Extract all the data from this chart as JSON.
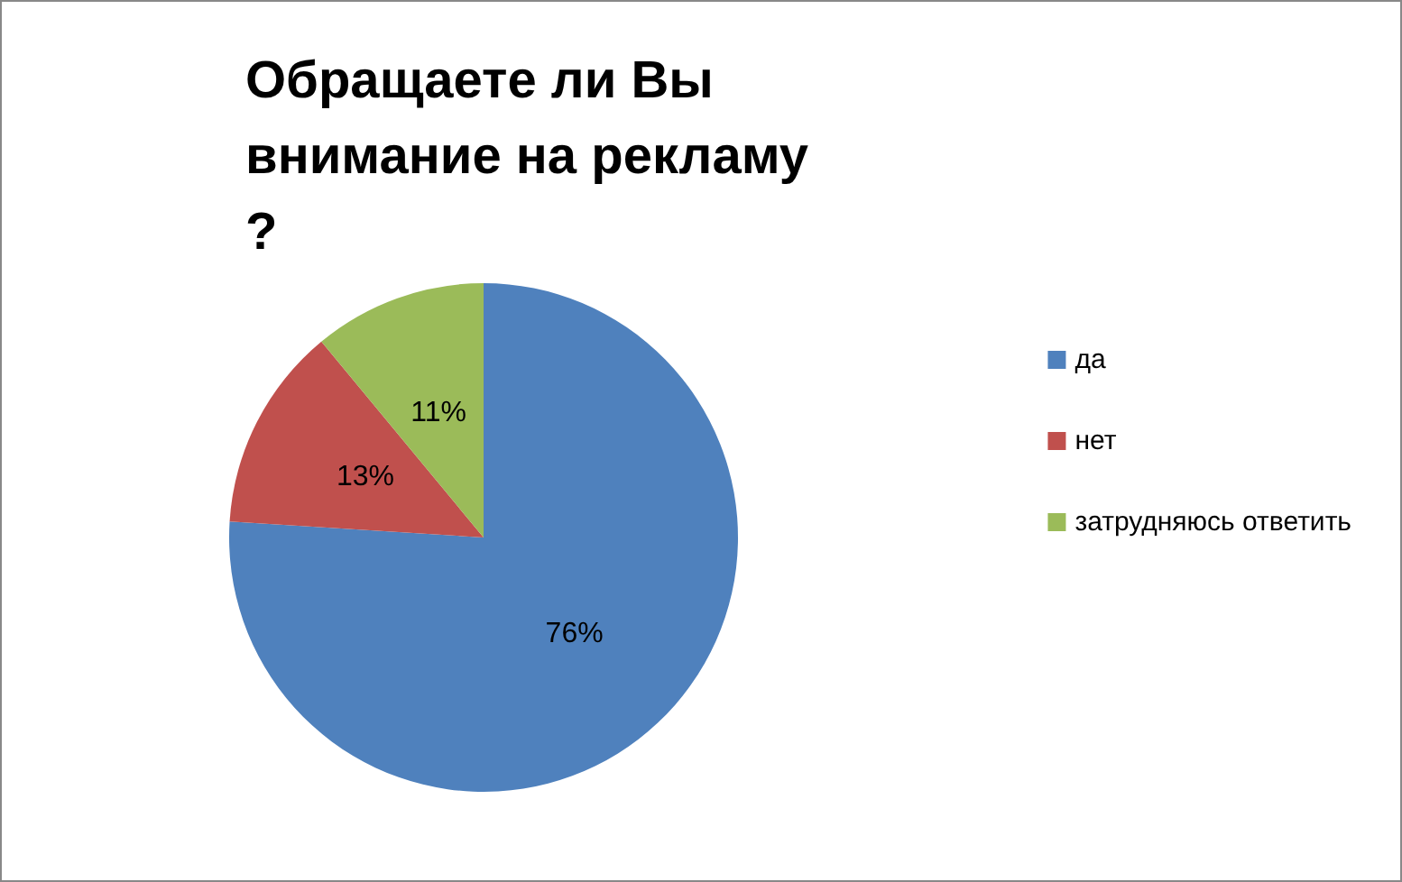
{
  "chart_data": {
    "type": "pie",
    "title": "Обращаете ли Вы внимание на рекламу?",
    "categories": [
      "да",
      "нет",
      "затрудняюсь ответить"
    ],
    "values": [
      76,
      13,
      11
    ],
    "colors": [
      "#4f81bd",
      "#c0504d",
      "#9bbb59"
    ],
    "legend": "right",
    "value_labels": [
      "76%",
      "13%",
      "11%"
    ]
  }
}
